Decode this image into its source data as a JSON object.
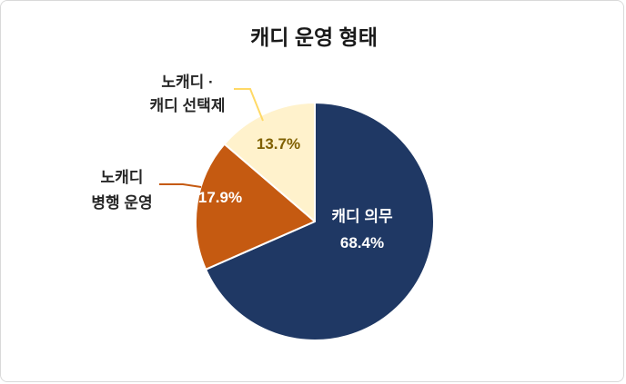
{
  "chart_data": {
    "type": "pie",
    "title": "캐디 운영 형태",
    "categories": [
      "캐디 의무",
      "노캐디 병행 운영",
      "노캐디 · 캐디 선택제"
    ],
    "values": [
      68.4,
      17.9,
      13.7
    ],
    "unit": "%",
    "start_angle_deg": 0,
    "direction": "clockwise",
    "colors": [
      "#1F3864",
      "#C55A11",
      "#FFF2CC"
    ],
    "slice_border_color": "#FFFFFF",
    "legend_position": "none",
    "grid": false,
    "labels": {
      "mandatory": {
        "line1": "캐디 의무",
        "line2": "68.4%",
        "text_color": "#FFFFFF"
      },
      "parallel_pct": {
        "text": "17.9%",
        "text_color": "#FFFFFF"
      },
      "select_pct": {
        "text": "13.7%",
        "text_color": "#7F6000"
      },
      "outside_select": {
        "line1": "노캐디 ·",
        "line2": "캐디 선택제",
        "text_color": "#262626",
        "leader_color": "#FFD966"
      },
      "outside_parallel": {
        "line1": "노캐디",
        "line2": "병행 운영",
        "text_color": "#262626",
        "leader_color": "#C55A11"
      }
    }
  }
}
